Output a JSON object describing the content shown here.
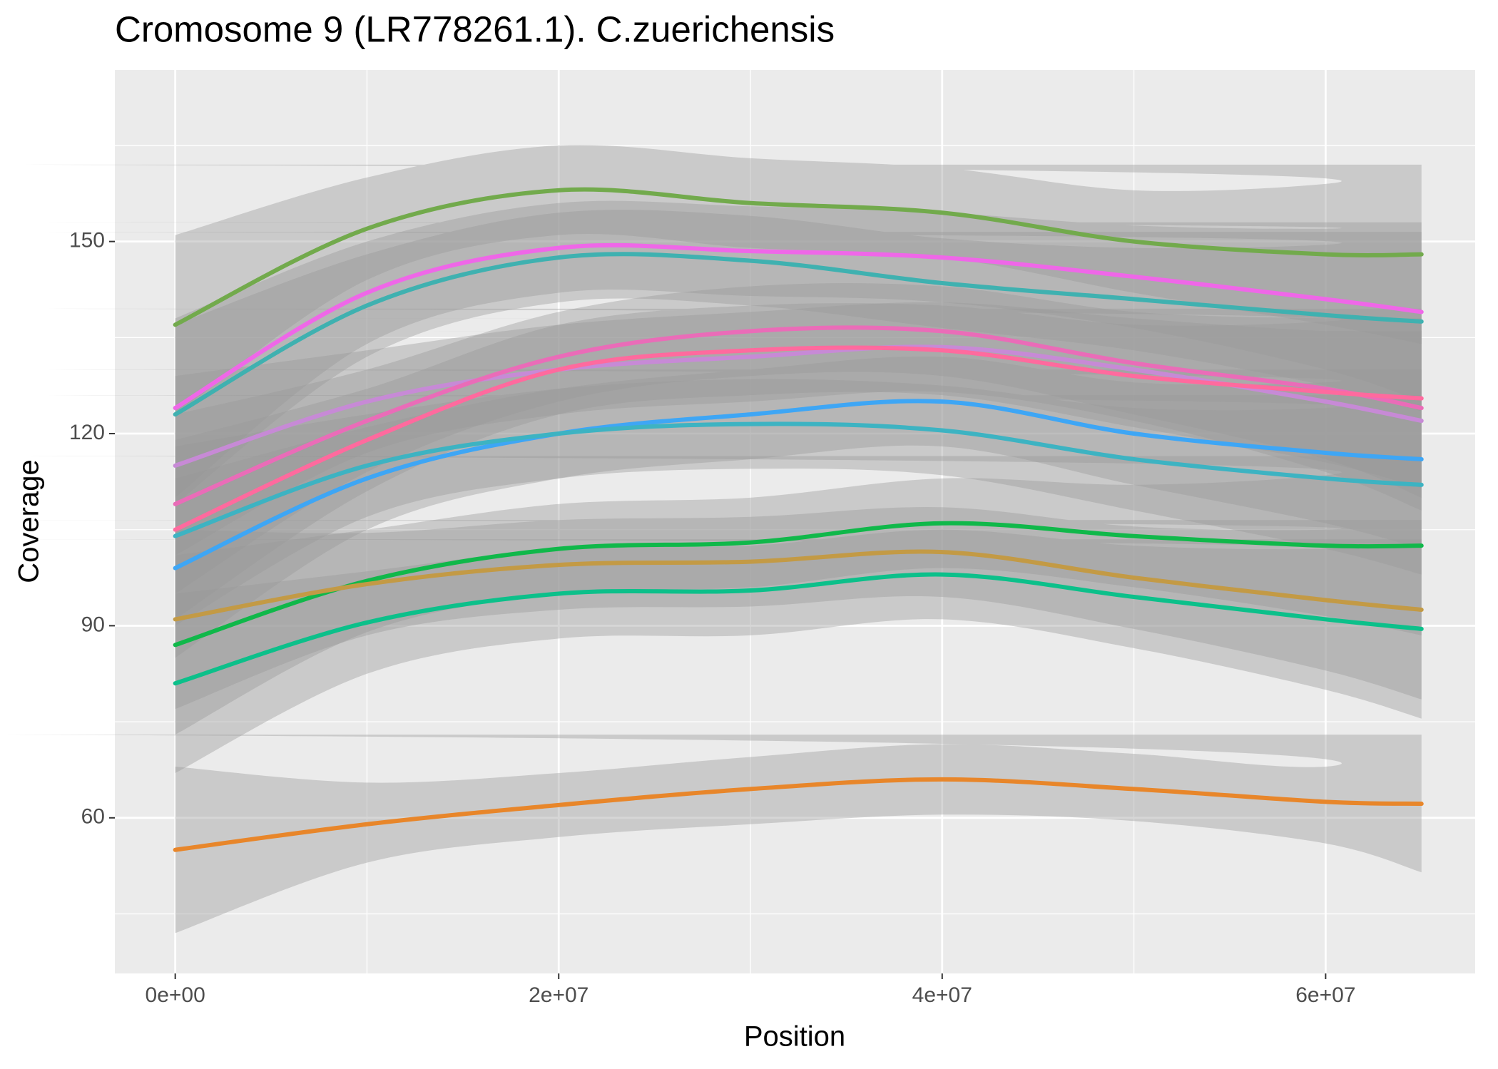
{
  "chart_data": {
    "type": "line",
    "title": "Cromosome 9 (LR778261.1). C.zuerichensis",
    "x_label": "Position",
    "y_label": "Coverage",
    "x": [
      0,
      10000000,
      20000000,
      30000000,
      40000000,
      50000000,
      60000000,
      65000000
    ],
    "xlim": [
      -3150000,
      67800000
    ],
    "ylim": [
      35.7,
      176.8
    ],
    "xticks": [
      {
        "value": 0,
        "label": "0e+00"
      },
      {
        "value": 20000000,
        "label": "2e+07"
      },
      {
        "value": 40000000,
        "label": "4e+07"
      },
      {
        "value": 60000000,
        "label": "6e+07"
      }
    ],
    "yticks": [
      60,
      90,
      120,
      150
    ],
    "x_minor_grid": [
      10000000,
      30000000,
      50000000
    ],
    "y_minor_grid": [
      45,
      75,
      105,
      135,
      165
    ],
    "grid": true,
    "ribbon_color": "#999999",
    "series": [
      {
        "color": "#e8862a",
        "values": [
          55,
          59,
          62,
          64.5,
          66,
          64.5,
          62.5,
          62.2
        ],
        "lower": [
          42,
          53,
          57,
          59,
          60.5,
          59.5,
          56,
          51.5
        ],
        "upper": [
          68,
          65.5,
          67,
          69.5,
          71.5,
          70,
          68,
          73
        ]
      },
      {
        "color": "#72aa4c",
        "values": [
          137,
          152,
          158,
          156,
          154.5,
          150,
          148,
          148
        ],
        "lower": [
          123,
          144,
          151,
          149,
          147.5,
          142,
          137,
          134
        ],
        "upper": [
          151,
          160,
          165,
          163,
          161.5,
          158,
          159,
          162
        ]
      },
      {
        "color": "#ef67e8",
        "values": [
          124,
          142,
          149,
          148.5,
          147.5,
          144.5,
          141,
          139
        ],
        "lower": [
          110,
          134,
          142,
          141.5,
          140.5,
          136.5,
          130,
          125
        ],
        "upper": [
          138,
          150,
          156,
          155.5,
          154.5,
          152.5,
          152,
          153
        ]
      },
      {
        "color": "#3fb1b0",
        "values": [
          123,
          140,
          147.5,
          147,
          143.5,
          141,
          138.5,
          137.5
        ],
        "lower": [
          109,
          132,
          140.5,
          140,
          136.5,
          133,
          127.5,
          123.5
        ],
        "upper": [
          137,
          148,
          154.5,
          154,
          150.5,
          149,
          149.5,
          151.5
        ]
      },
      {
        "color": "#c78ad6",
        "values": [
          115,
          125,
          130,
          132,
          133.5,
          130,
          125,
          122
        ],
        "lower": [
          101,
          117,
          123,
          125,
          126.5,
          122,
          114,
          108
        ],
        "upper": [
          129,
          133,
          137,
          139,
          140.5,
          138,
          136,
          136
        ]
      },
      {
        "color": "#ea6cb8",
        "values": [
          109,
          122,
          132,
          136,
          136,
          131,
          127,
          124
        ],
        "lower": [
          95,
          114,
          125,
          129,
          129,
          123,
          116,
          110
        ],
        "upper": [
          123,
          130,
          139,
          143,
          143,
          139,
          138,
          138
        ]
      },
      {
        "color": "#ff6a9e",
        "values": [
          105,
          119,
          130,
          133,
          133,
          129,
          126.5,
          125.5
        ],
        "lower": [
          91,
          111,
          123,
          126,
          126,
          121,
          115.5,
          111.5
        ],
        "upper": [
          119,
          127,
          137,
          140,
          140,
          137,
          137.5,
          139.5
        ]
      },
      {
        "color": "#3ea6f5",
        "values": [
          99,
          113,
          120,
          123,
          125,
          120,
          117,
          116
        ],
        "lower": [
          85,
          105,
          113,
          116,
          118,
          112,
          106,
          102
        ],
        "upper": [
          113,
          121,
          127,
          130,
          132,
          128,
          128,
          130
        ]
      },
      {
        "color": "#3db3c2",
        "values": [
          104,
          115,
          120,
          121.5,
          120.5,
          116,
          113,
          112
        ],
        "lower": [
          90,
          107,
          113,
          114.5,
          113.5,
          108,
          102,
          98
        ],
        "upper": [
          118,
          123,
          127,
          128.5,
          127.5,
          124,
          124,
          126
        ]
      },
      {
        "color": "#10b84a",
        "values": [
          87,
          97,
          102,
          103,
          106,
          104,
          102.5,
          102.5
        ],
        "lower": [
          73,
          89,
          95,
          96,
          99,
          96,
          91.5,
          88.5
        ],
        "upper": [
          101,
          105,
          109,
          110,
          113,
          112,
          113.5,
          116.5
        ]
      },
      {
        "color": "#c39a45",
        "values": [
          91,
          96.5,
          99.5,
          100,
          101.5,
          97.5,
          94,
          92.5
        ],
        "lower": [
          77,
          88.5,
          92.5,
          93,
          94.5,
          89.5,
          83,
          78.5
        ],
        "upper": [
          105,
          104.5,
          106.5,
          107,
          108.5,
          105.5,
          105,
          106.5
        ]
      },
      {
        "color": "#0cc08a",
        "values": [
          81,
          90.5,
          95,
          95.5,
          98,
          94.5,
          91,
          89.5
        ],
        "lower": [
          67,
          82.5,
          88,
          88.5,
          91,
          86.5,
          80,
          75.5
        ],
        "upper": [
          95,
          98.5,
          102,
          102.5,
          105,
          102.5,
          102,
          103.5
        ]
      }
    ]
  }
}
